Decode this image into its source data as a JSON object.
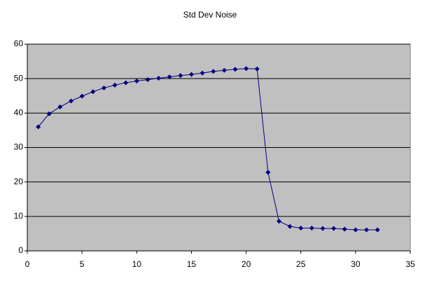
{
  "chart_data": {
    "type": "line",
    "title": "Std Dev Noise",
    "x": [
      1,
      2,
      3,
      4,
      5,
      6,
      7,
      8,
      9,
      10,
      11,
      12,
      13,
      14,
      15,
      16,
      17,
      18,
      19,
      20,
      21,
      22,
      23,
      24,
      25,
      26,
      27,
      28,
      29,
      30,
      31,
      32
    ],
    "values": [
      36,
      39.8,
      41.8,
      43.5,
      44.9,
      46.2,
      47.3,
      48.1,
      48.8,
      49.3,
      49.7,
      50.1,
      50.5,
      50.9,
      51.2,
      51.6,
      52.1,
      52.4,
      52.7,
      52.9,
      52.8,
      22.8,
      8.6,
      7.1,
      6.6,
      6.6,
      6.5,
      6.5,
      6.3,
      6.1,
      6.1,
      6.1
    ],
    "color": "#000080",
    "xlim": [
      0,
      35
    ],
    "xticks": [
      0,
      5,
      10,
      15,
      20,
      25,
      30,
      35
    ],
    "ylim": [
      0,
      60
    ],
    "yticks": [
      0,
      10,
      20,
      30,
      40,
      50,
      60
    ],
    "grid": true,
    "plot_background": "#c0c0c0"
  }
}
